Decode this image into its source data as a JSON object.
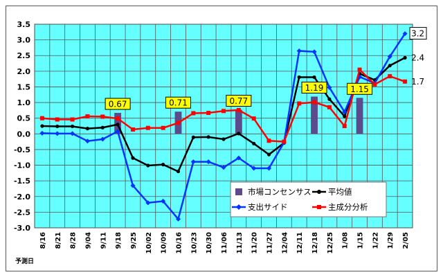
{
  "chart_data": {
    "type": "line",
    "xlabel": "予測日",
    "ylim": [
      -3.0,
      3.5
    ],
    "ystep": 0.5,
    "grid": true,
    "legend_position": "bottom-right",
    "colors": {
      "plot_bg": "#66ffff",
      "market": "#5c4a8a",
      "avg": "#000000",
      "spend": "#0033ff",
      "pca": "#ff0000",
      "callout_bg": "#ffff00"
    },
    "x": [
      "8/16",
      "8/21",
      "8/28",
      "9/04",
      "9/11",
      "9/18",
      "9/25",
      "10/02",
      "10/09",
      "10/16",
      "10/23",
      "10/30",
      "11/06",
      "11/13",
      "11/20",
      "11/27",
      "12/04",
      "12/11",
      "12/18",
      "12/25",
      "1/08",
      "1/15",
      "1/22",
      "1/29",
      "2/05"
    ],
    "bars": {
      "name": "市場コンセンサス",
      "points": [
        {
          "x": "9/18",
          "value": 0.67,
          "label": "0.67"
        },
        {
          "x": "10/16",
          "value": 0.71,
          "label": "0.71"
        },
        {
          "x": "11/13",
          "value": 0.77,
          "label": "0.77"
        },
        {
          "x": "12/18",
          "value": 1.19,
          "label": "1.19"
        },
        {
          "x": "1/15",
          "value": 1.15,
          "label": "1.15"
        }
      ]
    },
    "series": [
      {
        "name": "平均値",
        "key": "avg",
        "marker": "circle",
        "end_label": "2.4",
        "values": [
          0.25,
          0.24,
          0.24,
          0.17,
          0.2,
          0.3,
          -0.77,
          -1.01,
          -0.98,
          -1.2,
          -0.11,
          -0.1,
          -0.17,
          0.01,
          -0.31,
          -0.66,
          -0.29,
          1.81,
          1.81,
          1.11,
          0.56,
          1.92,
          1.72,
          2.18,
          2.43
        ]
      },
      {
        "name": "支出サイド",
        "key": "spend",
        "marker": "diamond",
        "end_label": "3.2",
        "values": [
          0.02,
          0.01,
          0.01,
          -0.23,
          -0.17,
          0.08,
          -1.65,
          -2.2,
          -2.15,
          -2.72,
          -0.89,
          -0.89,
          -1.07,
          -0.77,
          -1.1,
          -1.1,
          -0.27,
          2.65,
          2.62,
          1.48,
          0.7,
          1.82,
          1.62,
          2.47,
          3.2
        ]
      },
      {
        "name": "主成分分析",
        "key": "pca",
        "marker": "square",
        "end_label": "1.7",
        "values": [
          0.5,
          0.46,
          0.46,
          0.56,
          0.55,
          0.49,
          0.14,
          0.19,
          0.19,
          0.35,
          0.66,
          0.67,
          0.73,
          0.76,
          0.49,
          -0.22,
          -0.25,
          0.97,
          1.01,
          0.85,
          0.25,
          2.05,
          1.58,
          1.84,
          1.67
        ]
      }
    ]
  }
}
